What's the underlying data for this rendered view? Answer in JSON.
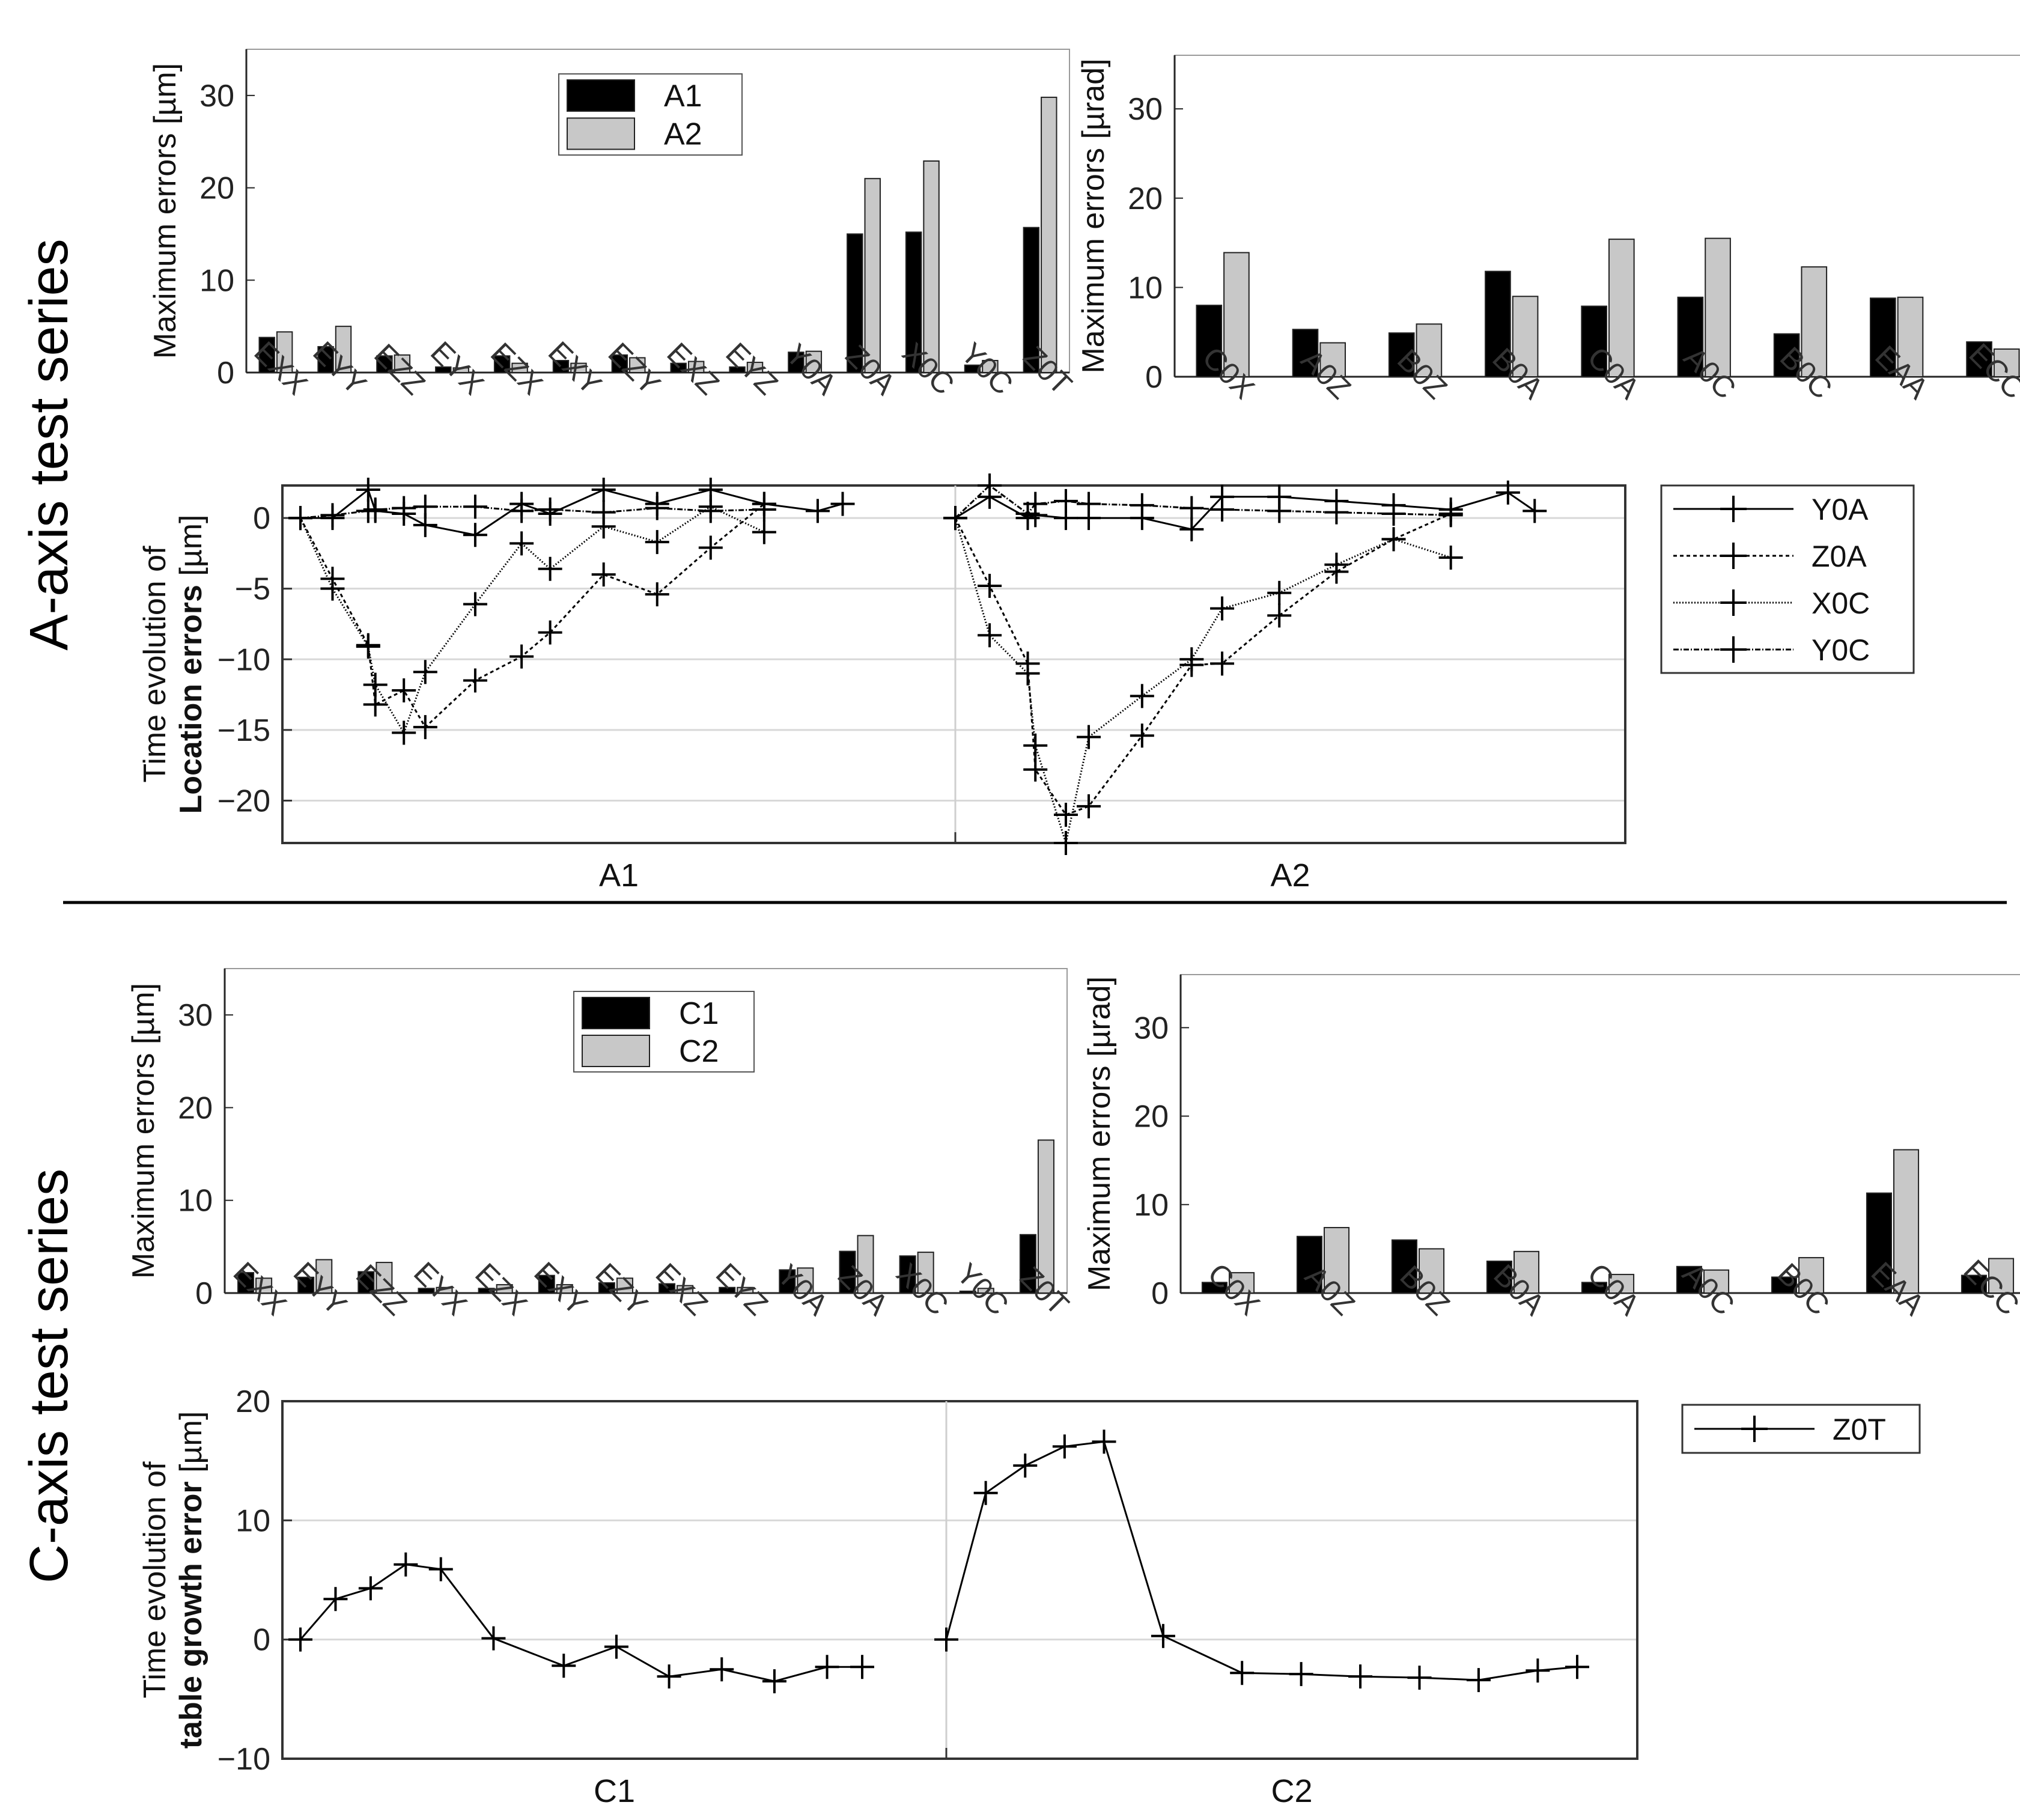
{
  "sections": {
    "a_axis": "A-axis test  series",
    "c_axis": "C-axis test  series"
  },
  "colors": {
    "bar1": "#000000",
    "bar2": "#c8c8c8",
    "grid": "#d8d8d8",
    "axis": "#262626"
  },
  "chart_data": [
    {
      "id": "a_pos",
      "type": "bar",
      "ylabel": "Maximum errors [µm]",
      "ylim": [
        0,
        35
      ],
      "yticks": [
        0,
        10,
        20,
        30
      ],
      "categories": [
        "EXX",
        "EYY",
        "EZZ",
        "EYX",
        "EZX",
        "EXY",
        "EZY",
        "EXZ",
        "EYZ",
        "Y0A",
        "Z0A",
        "X0C",
        "Y0C",
        "Z0T"
      ],
      "legend": {
        "position": "top",
        "entries": [
          "A1",
          "A2"
        ]
      },
      "series": [
        {
          "name": "A1",
          "values": [
            3.8,
            2.8,
            1.8,
            0.6,
            1.8,
            1.3,
            1.9,
            1.0,
            0.6,
            2.2,
            15.0,
            15.2,
            0.8,
            15.7
          ]
        },
        {
          "name": "A2",
          "values": [
            4.4,
            5.0,
            1.9,
            0.5,
            1.0,
            1.0,
            1.6,
            1.2,
            1.1,
            2.3,
            21.0,
            22.9,
            1.3,
            29.8
          ]
        }
      ]
    },
    {
      "id": "a_ang",
      "type": "bar",
      "ylabel": "Maximum errors [µrad]",
      "ylim": [
        0,
        36
      ],
      "yticks": [
        0,
        10,
        20,
        30
      ],
      "categories": [
        "C0X",
        "A0Z",
        "B0Z",
        "B0A",
        "C0A",
        "A0C",
        "B0C",
        "EAA",
        "ECC"
      ],
      "series": [
        {
          "name": "A1",
          "values": [
            8.0,
            5.3,
            4.9,
            11.8,
            7.9,
            8.9,
            4.8,
            8.8,
            3.9
          ]
        },
        {
          "name": "A2",
          "values": [
            13.9,
            3.8,
            5.9,
            9.0,
            15.4,
            15.5,
            12.3,
            8.9,
            3.1
          ]
        }
      ]
    },
    {
      "id": "a_loc",
      "type": "line",
      "ylabel_line1": "Time evolution of",
      "ylabel_line2": "Location errors",
      "ylabel_unit": " [µm]",
      "ylim": [
        -23,
        2.3
      ],
      "yticks": [
        0,
        -5,
        -10,
        -15,
        -20
      ],
      "panels": [
        "A1",
        "A2"
      ],
      "legend": {
        "position": "right",
        "entries": [
          "Y0A",
          "Z0A",
          "X0C",
          "Y0C"
        ]
      },
      "x": [
        [
          0,
          0.9,
          1.9,
          2.1,
          2.9,
          3.5,
          4.9,
          6.2,
          7.0,
          8.5,
          10.0,
          11.5,
          13.0,
          14.5,
          15.2
        ],
        [
          0,
          0.9,
          1.9,
          2.1,
          2.9,
          3.5,
          4.9,
          6.2,
          7.0,
          8.5,
          10.0,
          11.5,
          13.0,
          14.5,
          15.2
        ]
      ],
      "series": [
        {
          "name": "Y0A",
          "dash": "solid",
          "values": [
            [
              0,
              0,
              2.0,
              0.5,
              0.3,
              -0.5,
              -1.2,
              1.0,
              0.3,
              2.0,
              1.0,
              2.0,
              1.0,
              0.5,
              1.0
            ],
            [
              0,
              1.5,
              0,
              0.2,
              0,
              0,
              0,
              -0.8,
              1.5,
              1.5,
              1.2,
              0.9,
              0.6,
              1.8,
              0.5
            ]
          ]
        },
        {
          "name": "Z0A",
          "dash": "6,5",
          "values": [
            [
              0,
              -4.3,
              -9.0,
              -13.2,
              -12.2,
              -14.8,
              -11.5,
              -9.8,
              -8.1,
              -4.0,
              -5.4,
              -2.1,
              1.0,
              null,
              null
            ],
            [
              0,
              -4.8,
              -10.3,
              -17.8,
              -21.0,
              -20.4,
              -15.4,
              -10.4,
              -10.3,
              -6.9,
              -3.8,
              -1.5,
              0.3,
              null,
              null
            ]
          ]
        },
        {
          "name": "X0C",
          "dash": "2,3",
          "values": [
            [
              0,
              -5.0,
              -9.1,
              -11.8,
              -15.2,
              -10.9,
              -6.1,
              -1.8,
              -3.6,
              -0.6,
              -1.7,
              0.8,
              -1.0,
              null,
              null
            ],
            [
              0,
              -8.3,
              -11.0,
              -16.1,
              -23.0,
              -15.5,
              -12.6,
              -10.0,
              -6.4,
              -5.3,
              -3.3,
              -1.5,
              -2.8,
              null,
              null
            ]
          ]
        },
        {
          "name": "Y0C",
          "dash": "9,3,2,3",
          "values": [
            [
              0,
              0.2,
              0.5,
              0.6,
              0.7,
              0.8,
              0.8,
              0.5,
              0.6,
              0.4,
              0.7,
              0.5,
              0.6,
              null,
              null
            ],
            [
              0,
              2.3,
              0.3,
              1.0,
              1.2,
              1.0,
              0.9,
              0.7,
              0.6,
              0.5,
              0.4,
              0.3,
              0.2,
              null,
              null
            ]
          ]
        }
      ]
    },
    {
      "id": "c_pos",
      "type": "bar",
      "ylabel": "Maximum errors [µm]",
      "ylim": [
        0,
        35
      ],
      "yticks": [
        0,
        10,
        20,
        30
      ],
      "categories": [
        "EXX",
        "EYY",
        "EZZ",
        "EYX",
        "EZX",
        "EXY",
        "EZY",
        "EXZ",
        "EYZ",
        "Y0A",
        "Z0A",
        "X0C",
        "Y0C",
        "Z0T"
      ],
      "legend": {
        "position": "top",
        "entries": [
          "C1",
          "C2"
        ]
      },
      "series": [
        {
          "name": "C1",
          "values": [
            2.2,
            1.7,
            2.3,
            0.5,
            0.5,
            1.9,
            1.1,
            1.0,
            0.6,
            2.5,
            4.5,
            4.0,
            0.2,
            6.3
          ]
        },
        {
          "name": "C2",
          "values": [
            1.6,
            3.6,
            3.3,
            0.6,
            0.9,
            0.9,
            1.6,
            0.8,
            0.6,
            2.7,
            6.2,
            4.4,
            0.5,
            16.5
          ]
        }
      ]
    },
    {
      "id": "c_ang",
      "type": "bar",
      "ylabel": "Maximum errors [µrad]",
      "ylim": [
        0,
        36
      ],
      "yticks": [
        0,
        10,
        20,
        30
      ],
      "categories": [
        "C0X",
        "A0Z",
        "B0Z",
        "B0A",
        "C0A",
        "A0C",
        "B0C",
        "EAA",
        "ECC"
      ],
      "series": [
        {
          "name": "C1",
          "values": [
            1.2,
            6.4,
            6.0,
            3.6,
            1.2,
            3.0,
            1.8,
            11.3,
            2.0
          ]
        },
        {
          "name": "C2",
          "values": [
            2.3,
            7.4,
            5.0,
            4.7,
            2.1,
            2.6,
            4.0,
            16.2,
            3.9
          ]
        }
      ]
    },
    {
      "id": "c_tg",
      "type": "line",
      "ylabel_line1": "Time evolution of",
      "ylabel_line2": "table growth error",
      "ylabel_unit": " [µm]",
      "ylim": [
        -10,
        20
      ],
      "yticks": [
        20,
        10,
        0,
        -10
      ],
      "panels": [
        "C1",
        "C2"
      ],
      "legend": {
        "position": "right",
        "entries": [
          "Z0T"
        ]
      },
      "x": [
        [
          0,
          1,
          2,
          3,
          4,
          5.5,
          7.5,
          9,
          10.5,
          12,
          13.5,
          15,
          16
        ],
        [
          0,
          1,
          2,
          3,
          4,
          5.5,
          7.5,
          9,
          10.5,
          12,
          13.5,
          15,
          16
        ]
      ],
      "series": [
        {
          "name": "Z0T",
          "dash": "solid",
          "values": [
            [
              0,
              3.4,
              4.3,
              6.3,
              5.9,
              0.1,
              -2.2,
              -0.6,
              -3.1,
              -2.5,
              -3.5,
              -2.3,
              -2.3
            ],
            [
              0,
              12.3,
              14.6,
              16.2,
              16.6,
              0.3,
              -2.8,
              -2.9,
              -3.1,
              -3.2,
              -3.4,
              -2.6,
              -2.3
            ]
          ]
        }
      ]
    }
  ]
}
